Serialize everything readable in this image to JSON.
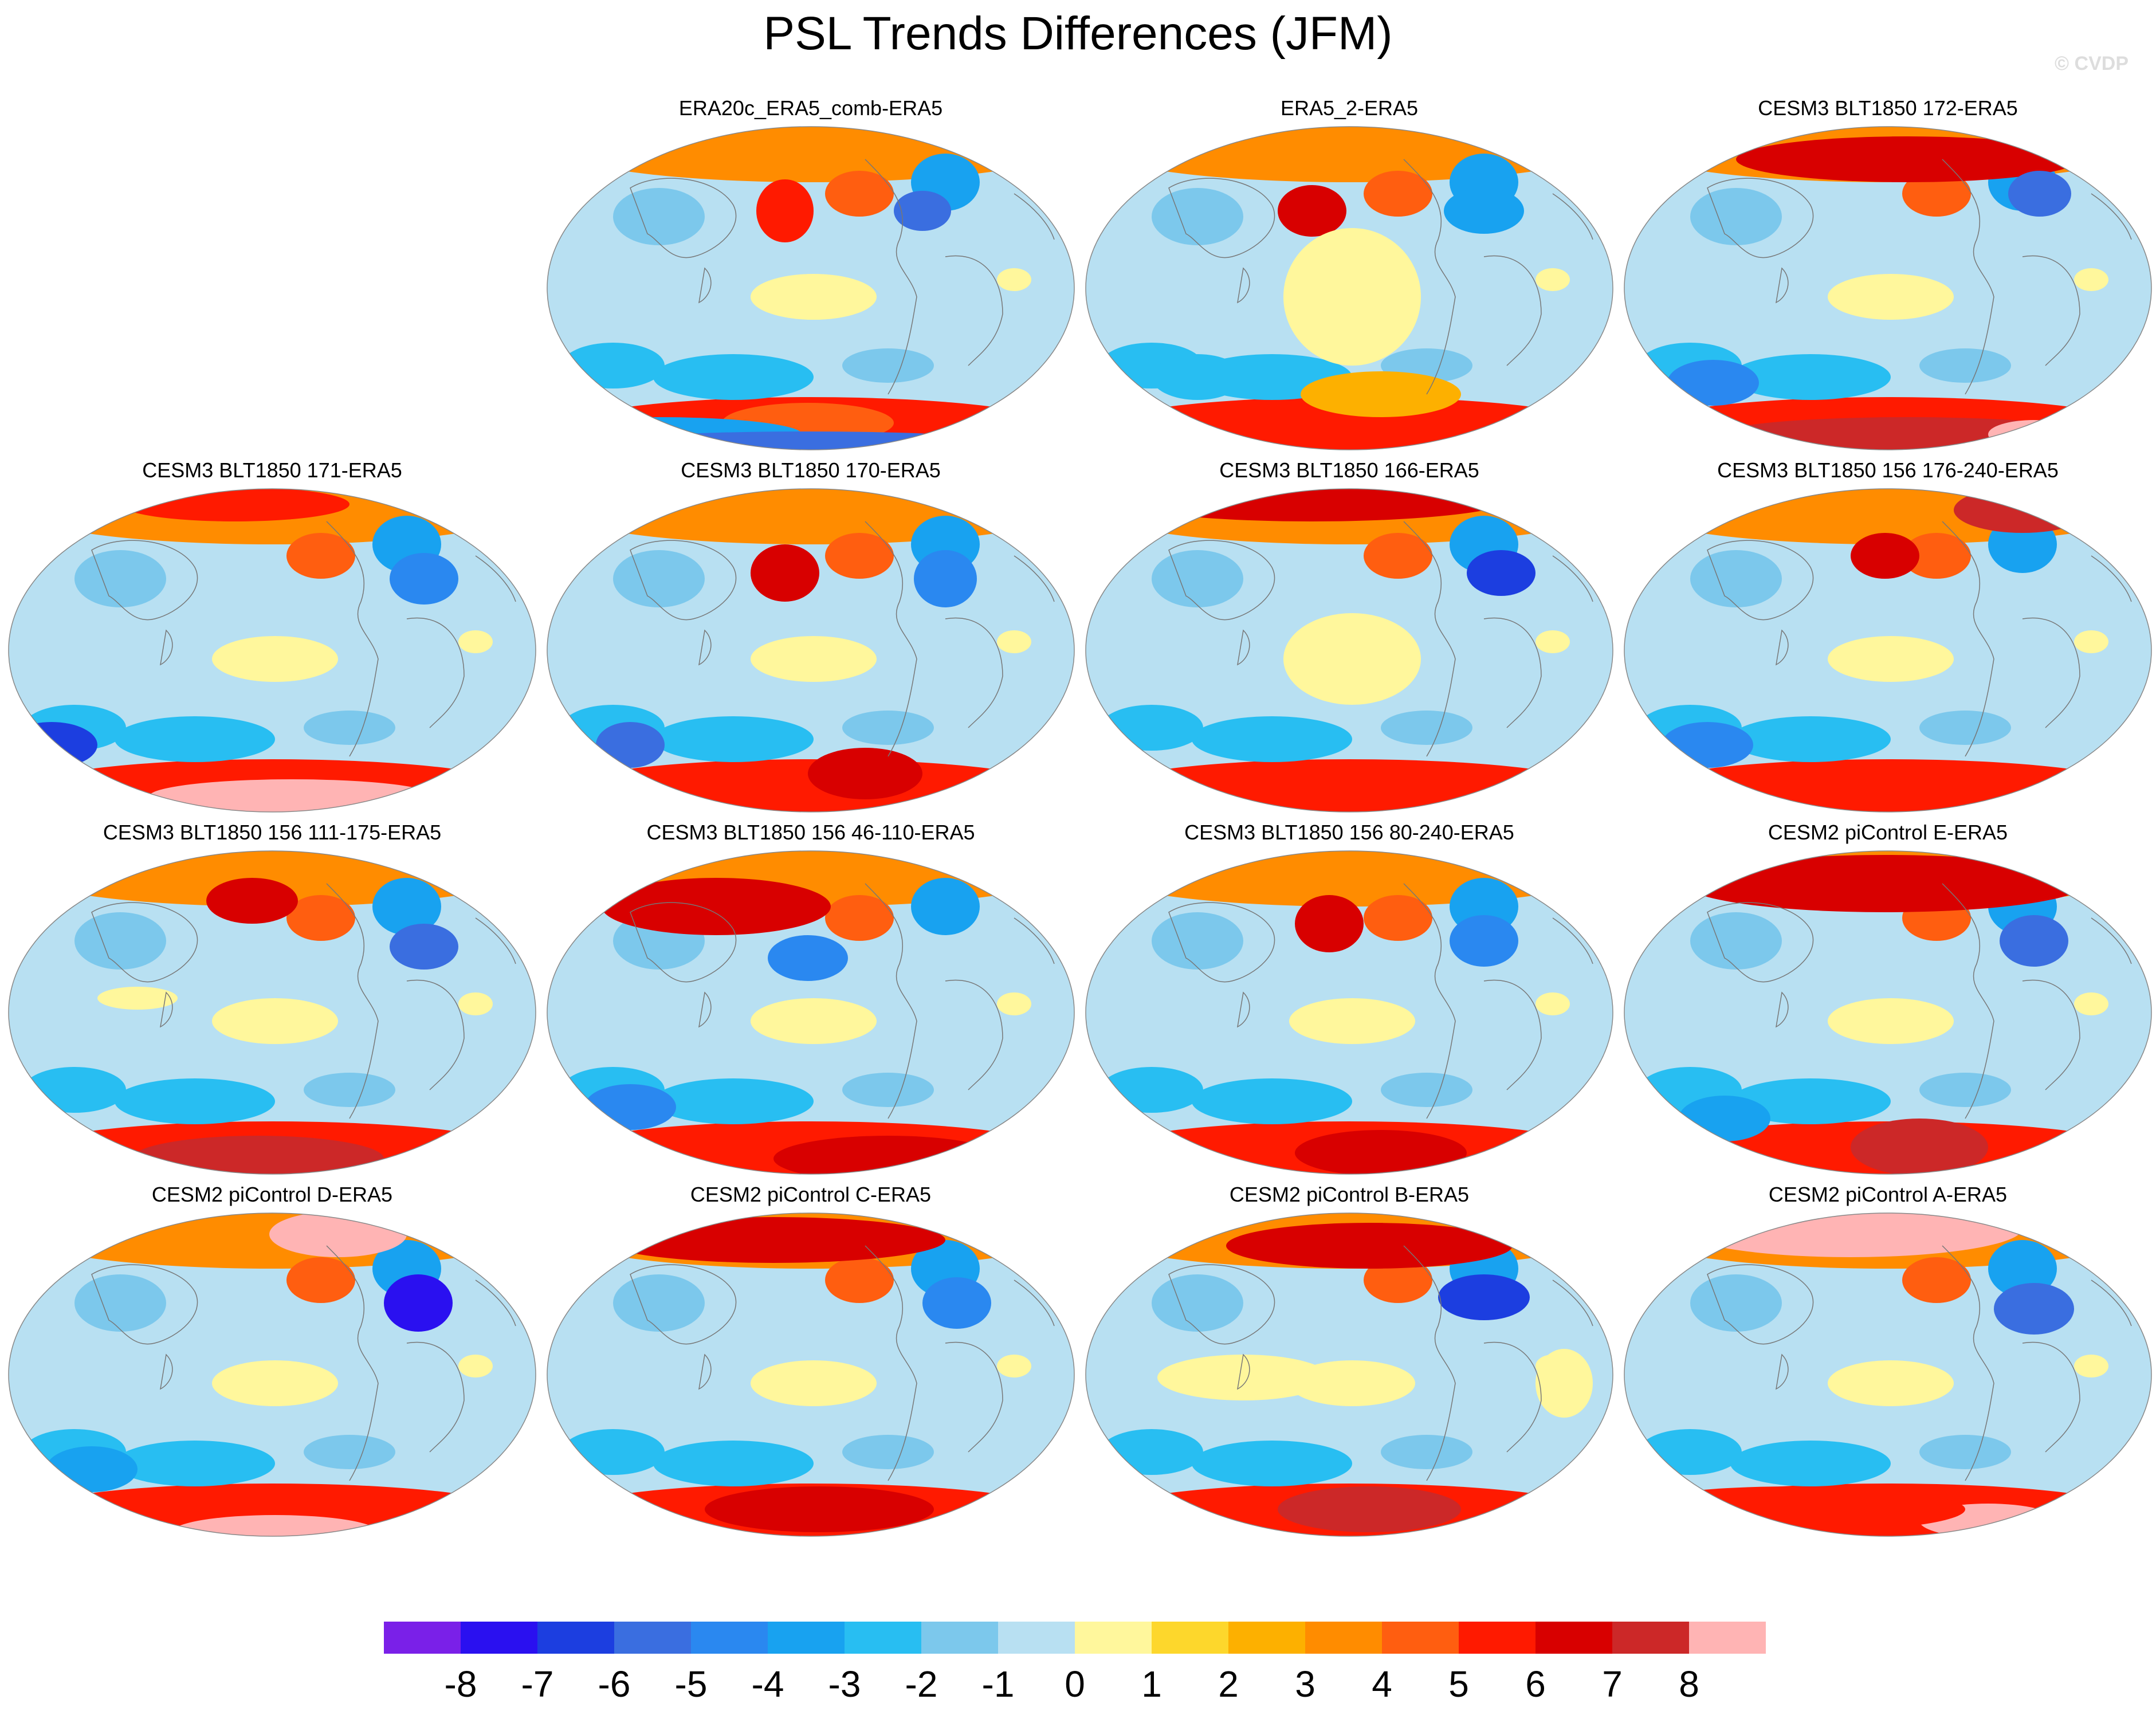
{
  "title": "PSL Trends Differences (JFM)",
  "credit": "© CVDP",
  "panels": [
    {
      "title": "ERA20c_ERA5_comb-ERA5",
      "row": 0,
      "col": 1
    },
    {
      "title": "ERA5_2-ERA5",
      "row": 0,
      "col": 2
    },
    {
      "title": "CESM3 BLT1850 172-ERA5",
      "row": 0,
      "col": 3
    },
    {
      "title": "CESM3 BLT1850 171-ERA5",
      "row": 1,
      "col": 0
    },
    {
      "title": "CESM3 BLT1850 170-ERA5",
      "row": 1,
      "col": 1
    },
    {
      "title": "CESM3 BLT1850 166-ERA5",
      "row": 1,
      "col": 2
    },
    {
      "title": "CESM3 BLT1850 156 176-240-ERA5",
      "row": 1,
      "col": 3
    },
    {
      "title": "CESM3 BLT1850 156 111-175-ERA5",
      "row": 2,
      "col": 0
    },
    {
      "title": "CESM3 BLT1850 156 46-110-ERA5",
      "row": 2,
      "col": 1
    },
    {
      "title": "CESM3 BLT1850 156 80-240-ERA5",
      "row": 2,
      "col": 2
    },
    {
      "title": "CESM2 piControl E-ERA5",
      "row": 2,
      "col": 3
    },
    {
      "title": "CESM2 piControl D-ERA5",
      "row": 3,
      "col": 0
    },
    {
      "title": "CESM2 piControl C-ERA5",
      "row": 3,
      "col": 1
    },
    {
      "title": "CESM2 piControl B-ERA5",
      "row": 3,
      "col": 2
    },
    {
      "title": "CESM2 piControl A-ERA5",
      "row": 3,
      "col": 3
    }
  ],
  "colorbar": {
    "labels": [
      "-8",
      "-7",
      "-6",
      "-5",
      "-4",
      "-3",
      "-2",
      "-1",
      "0",
      "1",
      "2",
      "3",
      "4",
      "5",
      "6",
      "7",
      "8"
    ],
    "colors": [
      "#7a20e8",
      "#2a10f0",
      "#1c3ee0",
      "#3a6ee0",
      "#2a88f0",
      "#18a2f0",
      "#28bef2",
      "#7cc8ec",
      "#b8e0f2",
      "#fff79c",
      "#fdd72c",
      "#fdb000",
      "#ff8c00",
      "#ff5e10",
      "#ff1a00",
      "#d80000",
      "#cc2828",
      "#ffb4b4"
    ]
  }
}
